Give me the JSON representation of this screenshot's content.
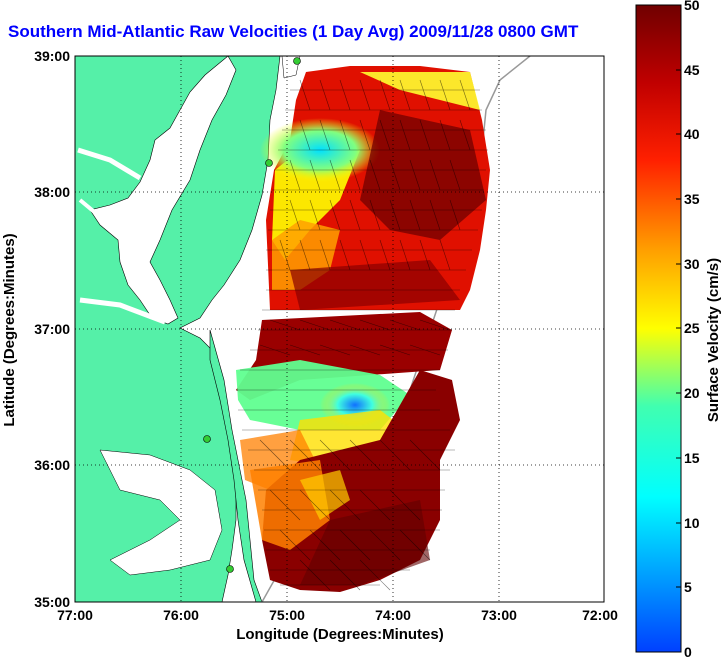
{
  "title": "Southern Mid-Atlantic Raw Velocities (1 Day Avg) 2009/11/28 0800 GMT",
  "xaxis": {
    "label": "Longitude (Degrees:Minutes)",
    "ticks": [
      "77:00",
      "76:00",
      "75:00",
      "74:00",
      "73:00",
      "72:00"
    ]
  },
  "yaxis": {
    "label": "Latitude (Degrees:Minutes)",
    "ticks": [
      "39:00",
      "38:00",
      "37:00",
      "36:00",
      "35:00"
    ]
  },
  "colorbar": {
    "label": "Surface Velocity (cm/s)",
    "ticks": [
      "50",
      "45",
      "40",
      "35",
      "30",
      "25",
      "20",
      "15",
      "10",
      "5",
      "0"
    ],
    "range": [
      0,
      50
    ]
  },
  "colors": {
    "land": "#55f0a8",
    "ocean": "#ffffff",
    "title": "#0000ff",
    "stations": "#33cc33"
  }
}
